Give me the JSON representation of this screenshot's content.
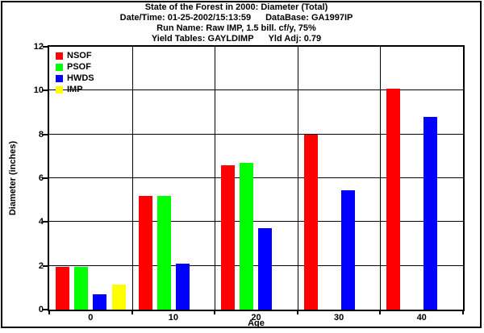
{
  "header": {
    "title": "State of the Forest in 2000: Diameter (Total)",
    "line2_left": "Date/Time: 01-25-2002/15:13:59",
    "line2_right": "DataBase: GA1997IP",
    "line3": "Run Name: Raw IMP, 1.5 bill. cf/y, 75%",
    "line4_left": "Yield Tables: GAYLDIMP",
    "line4_right": "Yld Adj: 0.79"
  },
  "chart_data": {
    "type": "bar",
    "title": "State of the Forest in 2000: Diameter (Total)",
    "categories": [
      "0",
      "10",
      "20",
      "30",
      "40"
    ],
    "series": [
      {
        "name": "NSOF",
        "color": "#ff0000",
        "values": [
          1.95,
          5.2,
          6.6,
          8.0,
          10.1
        ]
      },
      {
        "name": "PSOF",
        "color": "#00ff00",
        "values": [
          1.95,
          5.2,
          6.7,
          null,
          null
        ]
      },
      {
        "name": "HWDS",
        "color": "#0000ff",
        "values": [
          0.7,
          2.1,
          3.7,
          5.45,
          8.8
        ]
      },
      {
        "name": "IMP",
        "color": "#ffff00",
        "values": [
          1.15,
          null,
          null,
          null,
          null
        ]
      }
    ],
    "xlabel": "Age",
    "ylabel": "Diameter (inches)",
    "ylim": [
      0,
      12
    ],
    "ytick_step": 2,
    "legend_position": "top-left",
    "grid": true,
    "axis_color": "#000000",
    "background_color": "#ffffff"
  }
}
